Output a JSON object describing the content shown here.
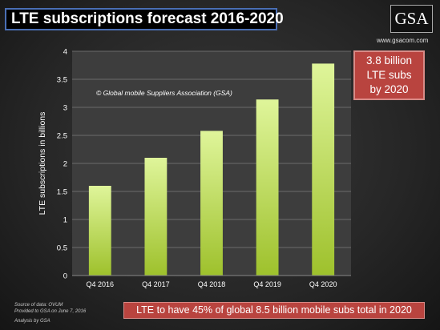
{
  "header": {
    "title": "LTE subscriptions forecast 2016-2020",
    "logo_text": "GSA",
    "website": "www.gsacom.com"
  },
  "chart_data": {
    "type": "bar",
    "categories": [
      "Q4 2016",
      "Q4 2017",
      "Q4 2018",
      "Q4 2019",
      "Q4 2020"
    ],
    "values": [
      1.6,
      2.1,
      2.58,
      3.14,
      3.78
    ],
    "ylabel": "LTE subscriptions in billions",
    "ylim": [
      0,
      4
    ],
    "yticks": [
      "0",
      "0.5",
      "1",
      "1.5",
      "2",
      "2.5",
      "3",
      "3.5",
      "4"
    ],
    "grid": true,
    "copyright": "© Global mobile Suppliers Association (GSA)",
    "colors": {
      "bar_top": "#dff59a",
      "bar_bottom": "#9ec12c",
      "plot_bg": "#3d3d3d",
      "grid": "#6a6a6a"
    }
  },
  "callout": {
    "lines": [
      "3.8 billion",
      "LTE subs",
      "by 2020"
    ]
  },
  "footer": {
    "summary": "LTE to have 45% of global 8.5 billion mobile subs total in 2020",
    "source_lines": [
      "Source of data: OVUM",
      "Provided to GSA on June 7, 2016",
      "Analysis by GSA"
    ]
  }
}
